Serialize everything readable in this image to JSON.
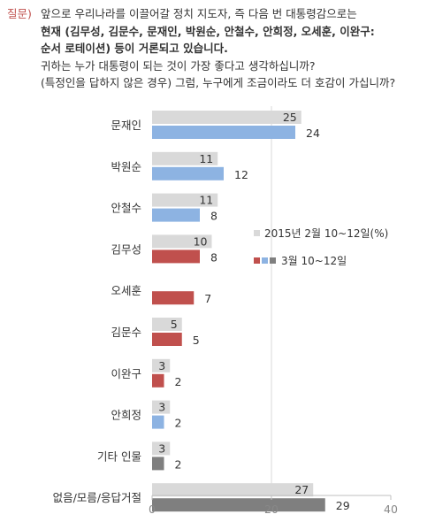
{
  "question": {
    "label": "질문)",
    "line1": "앞으로 우리나라를 이끌어갈 정치 지도자, 즉 다음 번 대통령감으로는",
    "line2": "현재 (김무성, 김문수, 문재인, 박원순, 안철수, 안희정, 오세훈, 이완구:",
    "line3": "순서 로테이션) 등이 거론되고 있습니다.",
    "line4": "귀하는 누가 대통령이 되는 것이 가장 좋다고 생각하십니까?",
    "line5": "(특정인을 답하지 않은 경우) 그럼, 누구에게 조금이라도 더 호감이 가십니까?"
  },
  "chart_data": {
    "type": "bar",
    "orientation": "horizontal",
    "categories": [
      "문재인",
      "박원순",
      "안철수",
      "김무성",
      "오세훈",
      "김문수",
      "이완구",
      "안희정",
      "기타 인물",
      "없음/모름/응답거절"
    ],
    "series": [
      {
        "name": "2015년 2월 10~12일(%)",
        "values": [
          25,
          11,
          11,
          10,
          null,
          5,
          3,
          3,
          3,
          27
        ]
      },
      {
        "name": "3월 10~12일",
        "values": [
          24,
          12,
          8,
          8,
          7,
          5,
          2,
          2,
          2,
          29
        ]
      }
    ],
    "xlim": [
      0,
      40
    ],
    "xticks": [
      "0",
      "20",
      "40"
    ],
    "legend_position": "right",
    "colors": {
      "previous": "#d9d9d9",
      "blue": "#8db3e2",
      "red": "#c0504d",
      "gray": "#7f7f7f"
    },
    "current_bar_colors": [
      "blue",
      "blue",
      "blue",
      "red",
      "red",
      "red",
      "red",
      "blue",
      "gray",
      "gray"
    ]
  }
}
